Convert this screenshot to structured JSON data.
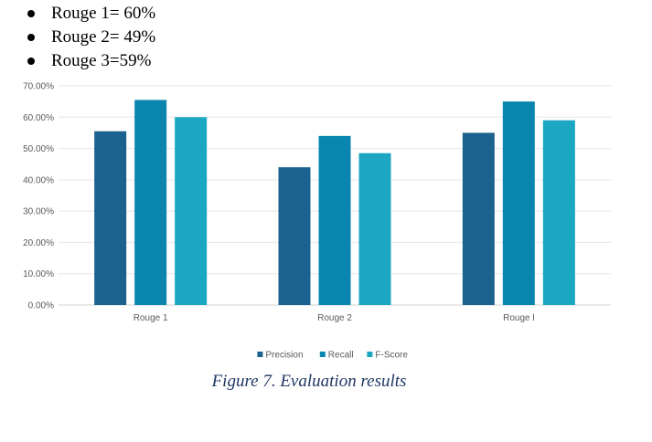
{
  "bullets": [
    {
      "text": "Rouge 1= 60%"
    },
    {
      "text": "Rouge 2= 49%"
    },
    {
      "text": "Rouge 3=59%"
    }
  ],
  "caption": "Figure 7. Evaluation results",
  "chart_data": {
    "type": "bar",
    "categories": [
      "Rouge 1",
      "Rouge 2",
      "Rouge l"
    ],
    "series": [
      {
        "name": "Precision",
        "color": "#1b628e",
        "values": [
          55.5,
          44.0,
          55.0
        ]
      },
      {
        "name": "Recall",
        "color": "#0a85b0",
        "values": [
          65.5,
          54.0,
          65.0
        ]
      },
      {
        "name": "F-Score",
        "color": "#1ba6c2",
        "values": [
          60.0,
          48.5,
          59.0
        ]
      }
    ],
    "yticks": [
      "0.00%",
      "10.00%",
      "20.00%",
      "30.00%",
      "40.00%",
      "50.00%",
      "60.00%",
      "70.00%"
    ],
    "ylim": [
      0,
      70
    ],
    "grid": true,
    "legend_position": "bottom"
  }
}
